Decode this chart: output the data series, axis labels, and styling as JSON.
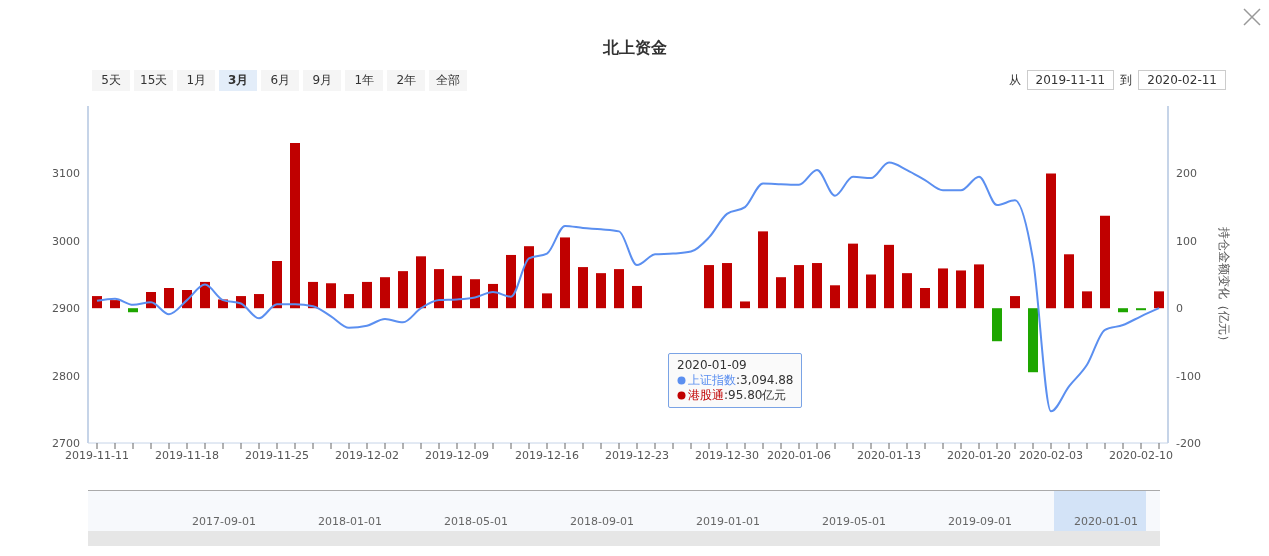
{
  "chart_data": {
    "type": "bar",
    "title": "北上资金",
    "y2label": "持仓金额变化（亿元）",
    "categories": [
      "2019-11-11",
      null,
      null,
      null,
      null,
      "2019-11-18",
      null,
      null,
      null,
      null,
      "2019-11-25",
      null,
      null,
      null,
      null,
      "2019-12-02",
      null,
      null,
      null,
      null,
      "2019-12-09",
      null,
      null,
      null,
      null,
      "2019-12-16",
      null,
      null,
      null,
      null,
      "2019-12-23",
      null,
      null,
      null,
      null,
      "2019-12-30",
      null,
      null,
      null,
      "2020-01-06",
      null,
      null,
      null,
      null,
      "2020-01-13",
      null,
      null,
      null,
      null,
      "2020-01-20",
      null,
      null,
      null,
      "2020-02-03",
      null,
      null,
      null,
      null,
      "2020-02-10",
      null
    ],
    "series": [
      {
        "name": "上证指数",
        "type": "line",
        "axis": "y",
        "color": "#5b8ff0",
        "values": [
          2911,
          2914,
          2905,
          2909,
          2891,
          2912,
          2935,
          2912,
          2907,
          2885,
          2906,
          2906,
          2903,
          2888,
          2871,
          2874,
          2884,
          2879,
          2900,
          2912,
          2913,
          2916,
          2924,
          2917,
          2974,
          2981,
          3022,
          3019,
          3017,
          3014,
          2964,
          2980,
          2981,
          2984,
          3005,
          3040,
          3050,
          3085,
          3084,
          3083,
          3105,
          3067,
          3094.88,
          3093,
          3116,
          3105,
          3090,
          3075,
          3075,
          3095,
          3053,
          3060,
          2972,
          2747,
          2784,
          2816,
          2868,
          2875,
          2888,
          2900
        ]
      },
      {
        "name": "港股通",
        "axis": "y2",
        "color": "#c00000",
        "colors": [
          "#c00000",
          "#c00000",
          "#1ea600",
          "#c00000",
          "#c00000",
          "#c00000",
          "#c00000",
          "#c00000",
          "#c00000",
          "#c00000",
          "#c00000",
          "#c00000",
          "#c00000",
          "#c00000",
          "#c00000",
          "#c00000",
          "#c00000",
          "#c00000",
          "#c00000",
          "#c00000",
          "#c00000",
          "#c00000",
          "#c00000",
          "#c00000",
          "#c00000",
          "#c00000",
          "#c00000",
          "#c00000",
          "#c00000",
          "#c00000",
          "#c00000",
          "#c00000",
          "#c00000",
          "#c00000",
          "#c00000",
          "#c00000",
          "#c00000",
          "#c00000",
          "#c00000",
          "#c00000",
          "#c00000",
          "#c00000",
          "#c00000",
          "#c00000",
          "#c00000",
          "#c00000",
          "#c00000",
          "#c00000",
          "#c00000",
          "#c00000",
          "#1ea600",
          "#c00000",
          "#1ea600",
          "#c00000",
          "#c00000",
          "#c00000",
          "#c00000",
          "#1ea600",
          "#1ea600",
          "#c00000"
        ],
        "values": [
          18,
          12,
          -6,
          24,
          30,
          27,
          39,
          13,
          18,
          21,
          70,
          245,
          39,
          37,
          21,
          39,
          46,
          55,
          77,
          58,
          48,
          43,
          36,
          79,
          92,
          22,
          105,
          61,
          52,
          58,
          33,
          null,
          null,
          null,
          64,
          67,
          10,
          114,
          46,
          64,
          67,
          34,
          95.8,
          50,
          94,
          52,
          30,
          59,
          56,
          65,
          -49,
          18,
          -95,
          200,
          80,
          25,
          137,
          -6,
          -3,
          25
        ]
      }
    ],
    "ylim": [
      2700,
      3200
    ],
    "yticks": [
      2700,
      2800,
      2900,
      3000,
      3100
    ],
    "y2lim": [
      -200,
      300
    ],
    "y2ticks": [
      -200,
      -100,
      0,
      100,
      200
    ],
    "grid": false,
    "legend": "bottom",
    "annotations": [
      "5天",
      "15天",
      "1月",
      "3月",
      "6月",
      "9月",
      "1年",
      "2年",
      "全部",
      "从",
      "2019-11-11",
      "到",
      "2020-02-11",
      "2017-09-01",
      "2018-01-01",
      "2018-05-01",
      "2018-09-01",
      "2019-01-01",
      "2019-05-01",
      "2019-09-01",
      "2020-01-01",
      "2020-01-09",
      ":3,094.88",
      ":95.80亿元"
    ]
  }
}
